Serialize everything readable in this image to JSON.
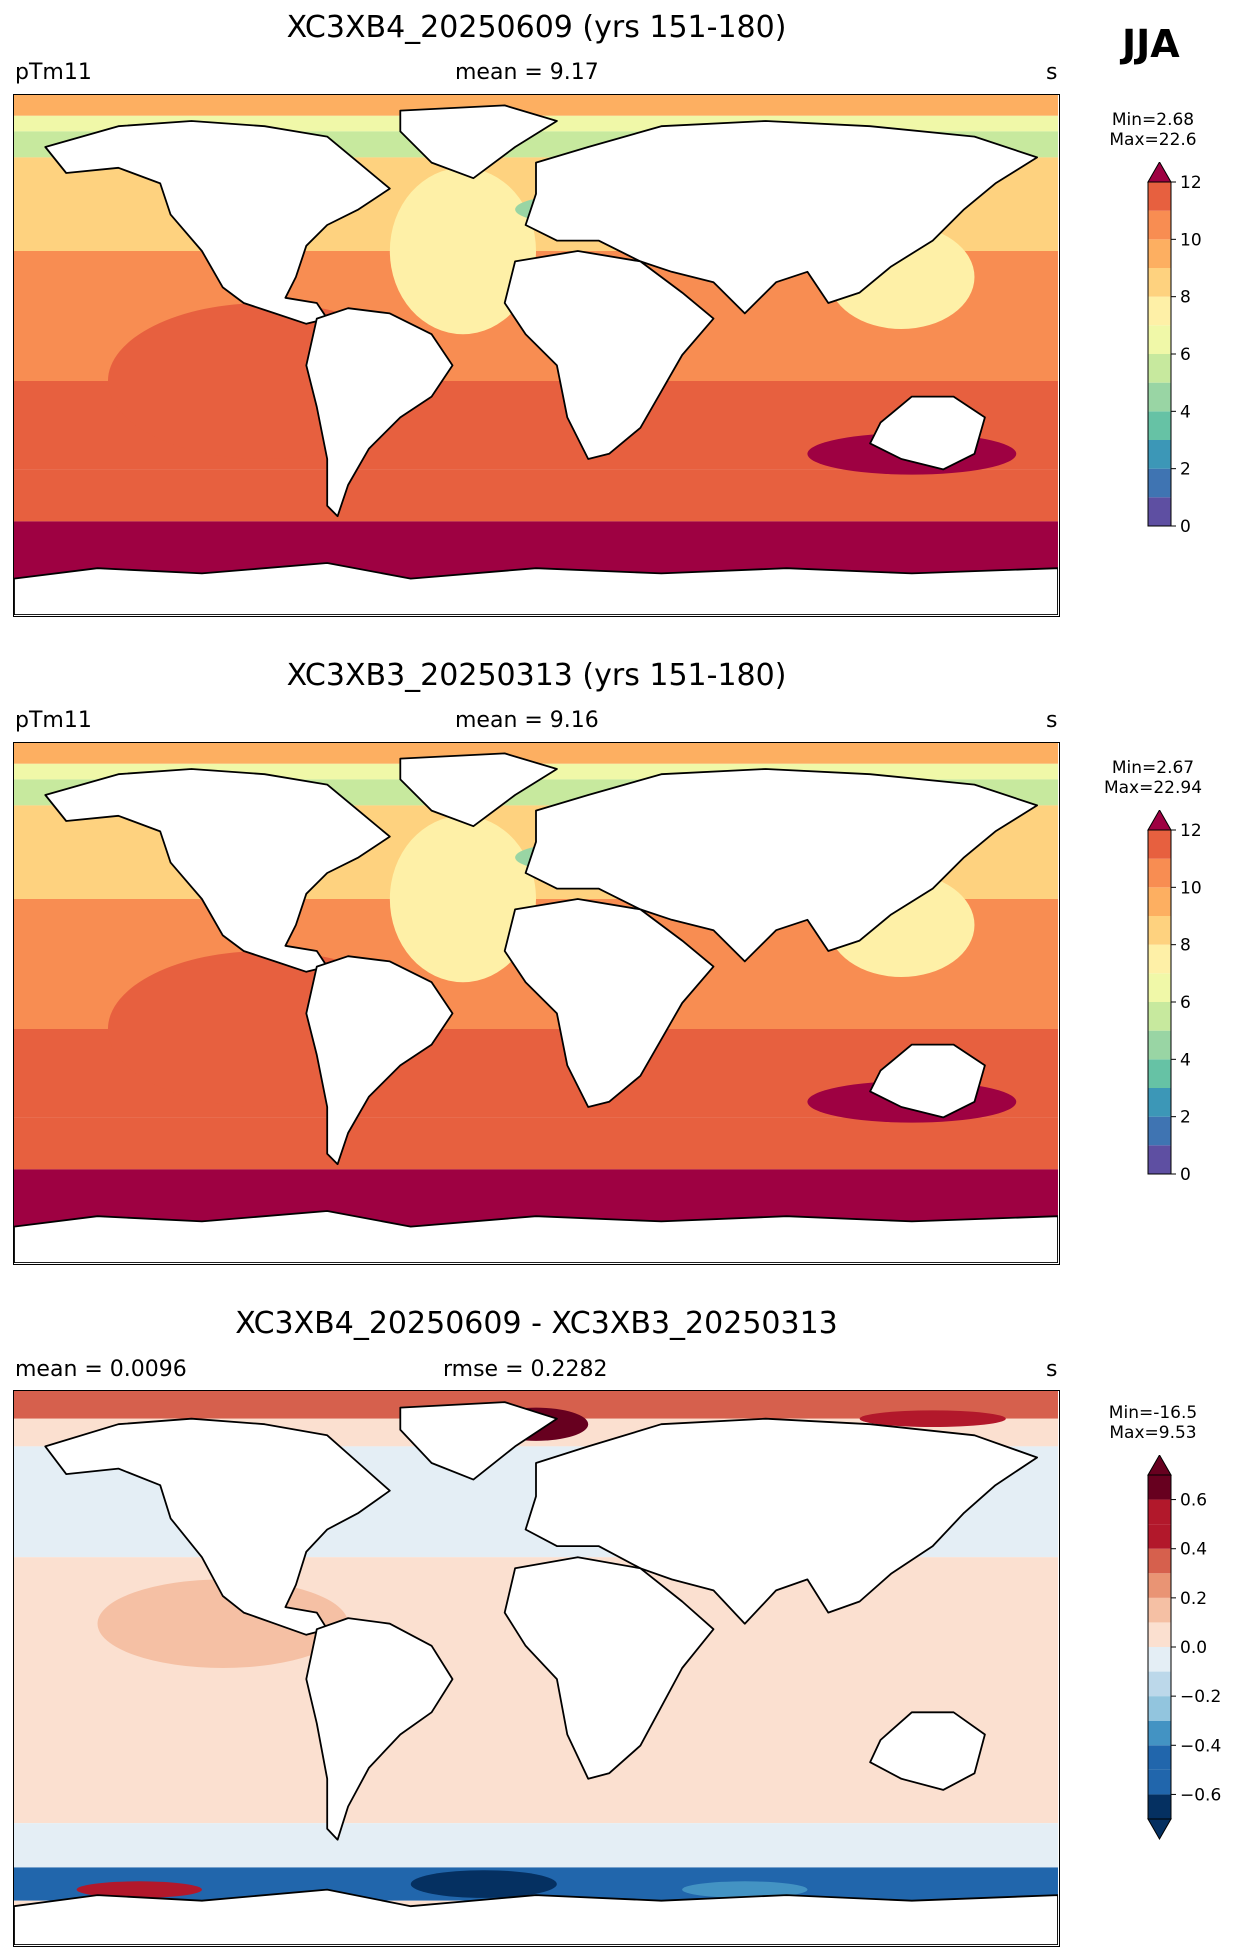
{
  "season": "JJA",
  "panels": [
    {
      "title": "XC3XB4_20250609 (yrs 151-180)",
      "left_label": "pTm11",
      "center_label": "mean = 9.17",
      "right_label": "s",
      "min_text": "Min=2.68",
      "max_text": "Max=22.6",
      "colorbar_ticks": [
        "0",
        "2",
        "4",
        "6",
        "8",
        "10",
        "12"
      ]
    },
    {
      "title": "XC3XB3_20250313 (yrs 151-180)",
      "left_label": "pTm11",
      "center_label": "mean = 9.16",
      "right_label": "s",
      "min_text": "Min=2.67",
      "max_text": "Max=22.94",
      "colorbar_ticks": [
        "0",
        "2",
        "4",
        "6",
        "8",
        "10",
        "12"
      ]
    },
    {
      "title": "XC3XB4_20250609 - XC3XB3_20250313",
      "left_label": "mean = 0.0096",
      "center_label": "rmse = 0.2282",
      "right_label": "s",
      "min_text": "Min=-16.5",
      "max_text": "Max=9.53",
      "colorbar_ticks": [
        "−0.6",
        "−0.4",
        "−0.2",
        "0.0",
        "0.2",
        "0.4",
        "0.6"
      ]
    }
  ],
  "chart_data": [
    {
      "type": "heatmap",
      "title": "XC3XB4_20250609 (yrs 151-180)",
      "variable": "pTm11",
      "units": "s",
      "mean": 9.17,
      "min": 2.68,
      "max": 22.6,
      "colorbar": {
        "range": [
          0,
          12
        ],
        "step": 1,
        "extend": "max",
        "colormap": "Spectral_r"
      }
    },
    {
      "type": "heatmap",
      "title": "XC3XB3_20250313 (yrs 151-180)",
      "variable": "pTm11",
      "units": "s",
      "mean": 9.16,
      "min": 2.67,
      "max": 22.94,
      "colorbar": {
        "range": [
          0,
          12
        ],
        "step": 1,
        "extend": "max",
        "colormap": "Spectral_r"
      }
    },
    {
      "type": "heatmap",
      "title": "XC3XB4_20250609 - XC3XB3_20250313",
      "units": "s",
      "mean": 0.0096,
      "rmse": 0.2282,
      "min": -16.5,
      "max": 9.53,
      "colorbar": {
        "range": [
          -0.7,
          0.7
        ],
        "step": 0.1,
        "extend": "both",
        "colormap": "RdBu_r"
      }
    }
  ],
  "colors": {
    "spectral": [
      "#5e4fa2",
      "#3f74b2",
      "#3c97b7",
      "#66c2a5",
      "#99d5a4",
      "#c7e99e",
      "#f0f8a8",
      "#fef0a7",
      "#fed27f",
      "#fdaf61",
      "#f88d52",
      "#e7603f",
      "#9e0142"
    ],
    "rdbu": [
      "#053061",
      "#2166ac",
      "#4393c3",
      "#92c5de",
      "#bcd8ea",
      "#e4eef5",
      "#fbe0d0",
      "#f5c0a4",
      "#e99474",
      "#d6604d",
      "#b2182b",
      "#67001f"
    ]
  }
}
